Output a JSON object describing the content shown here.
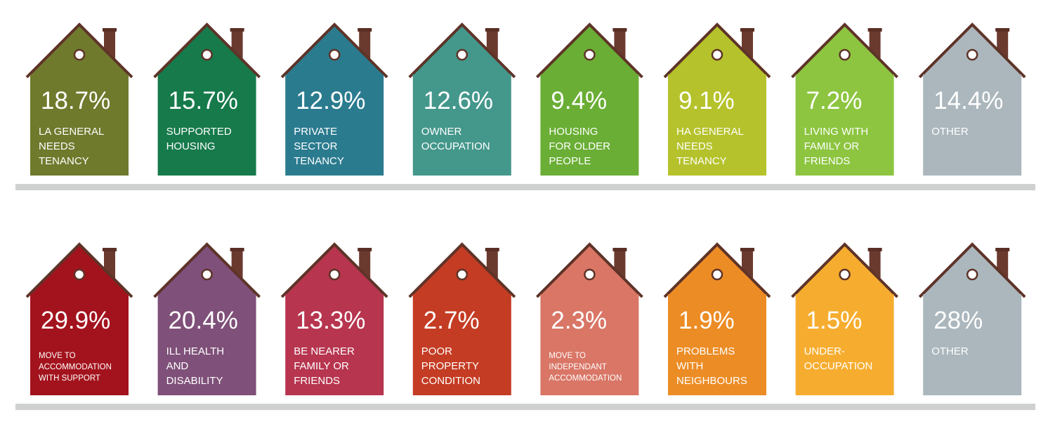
{
  "rows": [
    {
      "houses": [
        {
          "value": "18.7%",
          "label": [
            "LA GENERAL",
            "NEEDS",
            "TENANCY"
          ],
          "color": "#6f7a2c"
        },
        {
          "value": "15.7%",
          "label": [
            "SUPPORTED",
            "HOUSING"
          ],
          "color": "#167a4b"
        },
        {
          "value": "12.9%",
          "label": [
            "PRIVATE",
            "SECTOR",
            "TENANCY"
          ],
          "color": "#2b7b8f"
        },
        {
          "value": "12.6%",
          "label": [
            "OWNER",
            "OCCUPATION"
          ],
          "color": "#44978b"
        },
        {
          "value": "9.4%",
          "label": [
            "HOUSING",
            "FOR OLDER",
            "PEOPLE"
          ],
          "color": "#6aae35"
        },
        {
          "value": "9.1%",
          "label": [
            "HA GENERAL",
            "NEEDS",
            "TENANCY"
          ],
          "color": "#b5c22b"
        },
        {
          "value": "7.2%",
          "label": [
            "LIVING WITH",
            "FAMILY OR",
            "FRIENDS"
          ],
          "color": "#8dc540"
        },
        {
          "value": "14.4%",
          "label": [
            "OTHER"
          ],
          "color": "#abb7bd"
        }
      ]
    },
    {
      "houses": [
        {
          "value": "29.9%",
          "label": [
            "MOVE TO",
            "ACCOMMODATION",
            "WITH SUPPORT"
          ],
          "color": "#a3131d"
        },
        {
          "value": "20.4%",
          "label": [
            "ILL HEALTH",
            "AND",
            "DISABILITY"
          ],
          "color": "#7f5079"
        },
        {
          "value": "13.3%",
          "label": [
            "BE NEARER",
            "FAMILY OR",
            "FRIENDS"
          ],
          "color": "#b7354f"
        },
        {
          "value": "2.7%",
          "label": [
            "POOR",
            "PROPERTY",
            "CONDITION"
          ],
          "color": "#c43c23"
        },
        {
          "value": "2.3%",
          "label": [
            "MOVE TO",
            "INDEPENDANT",
            "ACCOMMODATION"
          ],
          "color": "#d97666"
        },
        {
          "value": "1.9%",
          "label": [
            "PROBLEMS",
            "WITH",
            "NEIGHBOURS"
          ],
          "color": "#ec8c25"
        },
        {
          "value": "1.5%",
          "label": [
            "UNDER-",
            "OCCUPATION"
          ],
          "color": "#f6ad2f"
        },
        {
          "value": "28%",
          "label": [
            "OTHER"
          ],
          "color": "#abb7bd"
        }
      ]
    }
  ]
}
